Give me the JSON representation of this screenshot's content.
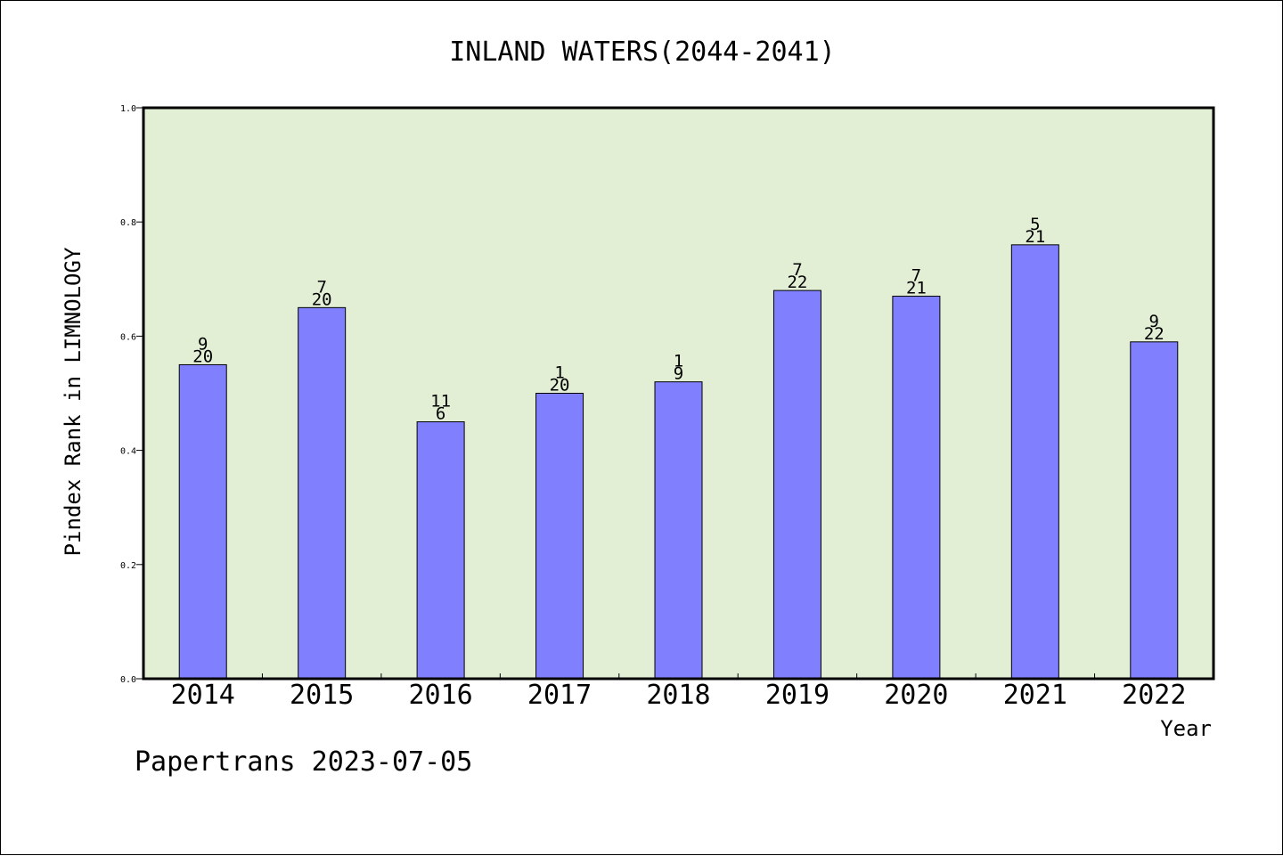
{
  "chart_data": {
    "type": "bar",
    "title": "INLAND WATERS(2044-2041)",
    "xlabel": "Year",
    "ylabel": "Pindex Rank in LIMNOLOGY",
    "categories": [
      "2014",
      "2015",
      "2016",
      "2017",
      "2018",
      "2019",
      "2020",
      "2021",
      "2022"
    ],
    "values": [
      0.55,
      0.65,
      0.45,
      0.5,
      0.52,
      0.68,
      0.67,
      0.76,
      0.59
    ],
    "rank_labels": [
      "9",
      "7",
      "11",
      "1",
      "1",
      "7",
      "7",
      "5",
      "9"
    ],
    "total_labels": [
      "20",
      "20",
      "6",
      "20",
      "9",
      "22",
      "21",
      "21",
      "22"
    ],
    "ylim": [
      0,
      1.0
    ],
    "yticks": [
      "0.0",
      "0.2",
      "0.4",
      "0.6",
      "0.8",
      "1.0"
    ],
    "grid": false,
    "footer": "Papertrans 2023-07-05",
    "colors": {
      "plot_background": "#e2efd5",
      "bar_fill": "#8080ff",
      "bar_stroke": "#000000",
      "frame": "#000000"
    }
  }
}
